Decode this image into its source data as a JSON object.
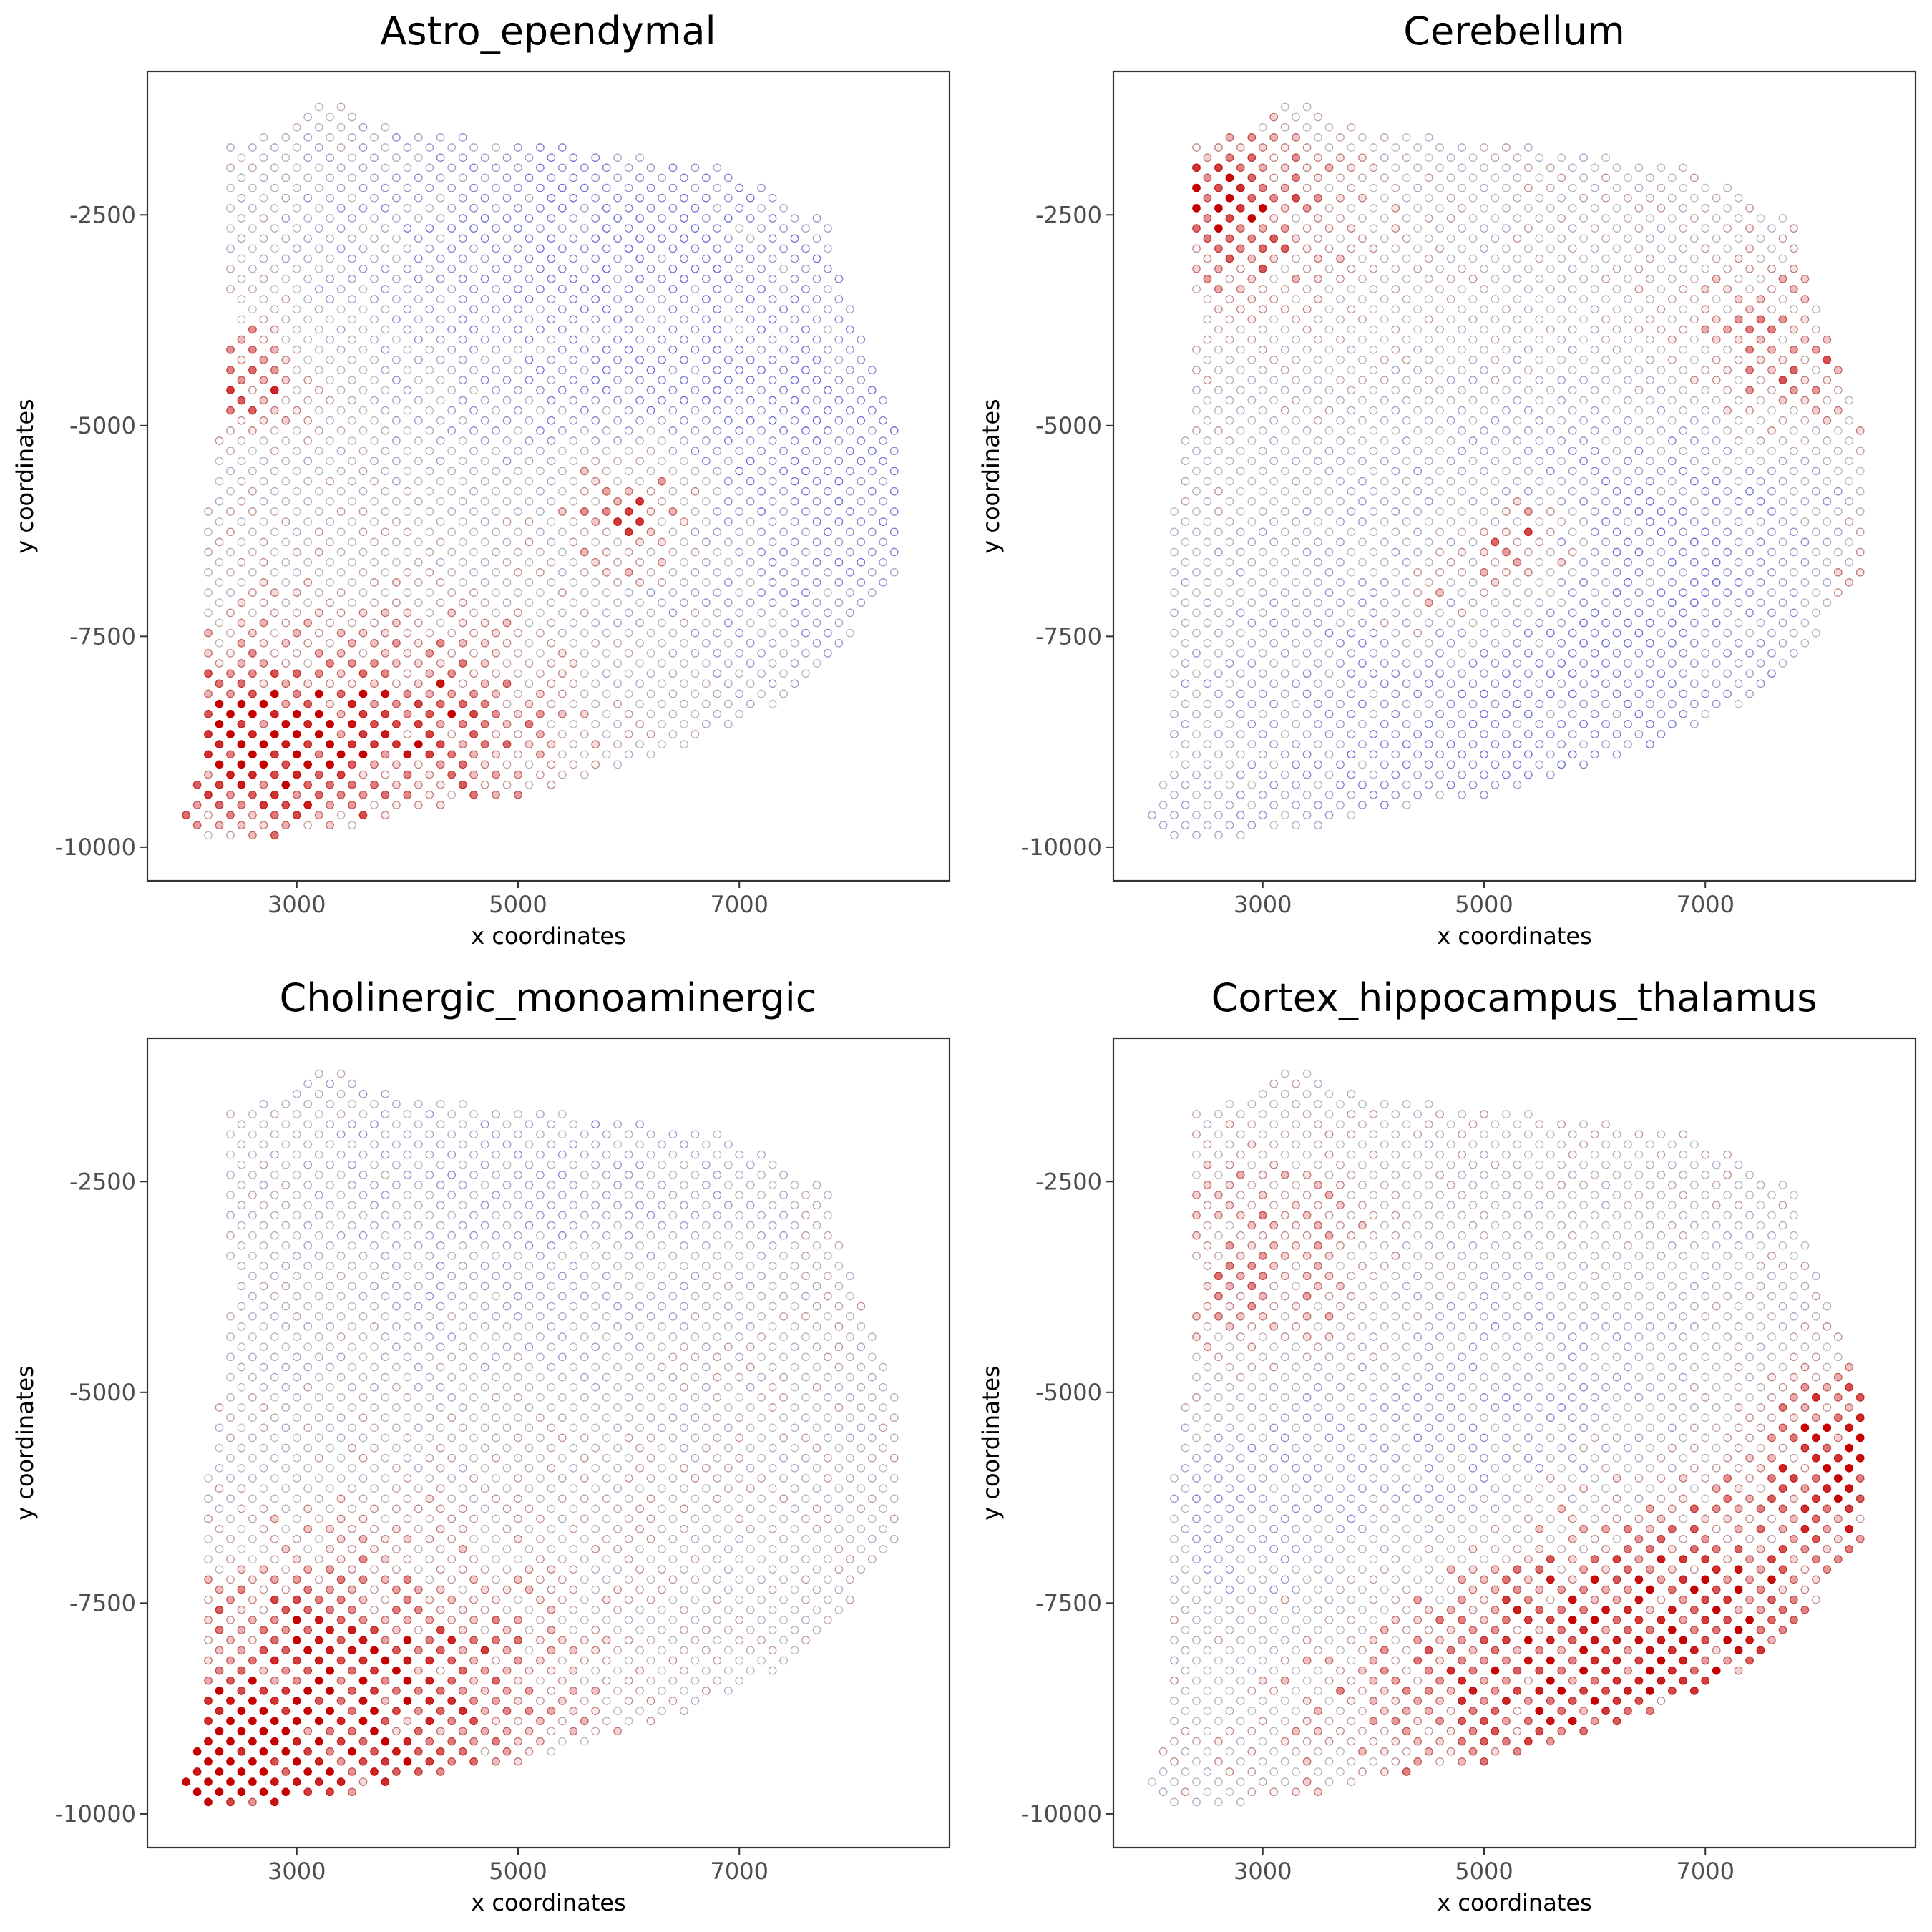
{
  "chart_data": [
    {
      "type": "scatter",
      "title": "Astro_ependymal",
      "xlabel": "x coordinates",
      "ylabel": "y coordinates",
      "xticks": [
        "3000",
        "5000",
        "7000"
      ],
      "yticks": [
        "-2500",
        "-5000",
        "-7500",
        "-10000"
      ],
      "xlim": [
        1650,
        8900
      ],
      "ylim": [
        -10400,
        -800
      ],
      "grid": false,
      "legend": "none",
      "colors": {
        "low": "#6a6ad8",
        "mid": "#bdbdbd",
        "high": "#c40000"
      },
      "hotspots": [
        {
          "x": 2450,
          "y": -4400,
          "r": 450,
          "w": 0.9
        },
        {
          "x": 6100,
          "y": -6000,
          "r": 550,
          "w": 1.0
        },
        {
          "x": 2450,
          "y": -8800,
          "r": 650,
          "w": 0.85
        },
        {
          "x": 3600,
          "y": -8600,
          "r": 1100,
          "w": 0.45
        },
        {
          "x": 4500,
          "y": -8600,
          "r": 700,
          "w": 0.4
        }
      ],
      "coldspots": [
        {
          "x": 5600,
          "y": -2700,
          "r": 1600,
          "w": 0.7
        },
        {
          "x": 7700,
          "y": -5500,
          "r": 1600,
          "w": 0.7
        }
      ]
    },
    {
      "type": "scatter",
      "title": "Cerebellum",
      "xlabel": "x coordinates",
      "ylabel": "y coordinates",
      "xticks": [
        "3000",
        "5000",
        "7000"
      ],
      "yticks": [
        "-2500",
        "-5000",
        "-7500",
        "-10000"
      ],
      "xlim": [
        1650,
        8900
      ],
      "ylim": [
        -10400,
        -800
      ],
      "grid": false,
      "legend": "none",
      "colors": {
        "low": "#6a6ad8",
        "mid": "#bdbdbd",
        "high": "#c40000"
      },
      "hotspots": [
        {
          "x": 2600,
          "y": -2400,
          "r": 700,
          "w": 0.9
        },
        {
          "x": 5350,
          "y": -6400,
          "r": 450,
          "w": 0.85
        },
        {
          "x": 4700,
          "y": -7200,
          "r": 450,
          "w": 0.7
        },
        {
          "x": 7700,
          "y": -4300,
          "r": 800,
          "w": 0.6
        },
        {
          "x": 8500,
          "y": -6800,
          "r": 500,
          "w": 0.5
        }
      ],
      "coldspots": [
        {
          "x": 5000,
          "y": -8600,
          "r": 1700,
          "w": 0.7
        },
        {
          "x": 6800,
          "y": -6200,
          "r": 1300,
          "w": 0.6
        }
      ]
    },
    {
      "type": "scatter",
      "title": "Cholinergic_monoaminergic",
      "xlabel": "x coordinates",
      "ylabel": "y coordinates",
      "xticks": [
        "3000",
        "5000",
        "7000"
      ],
      "yticks": [
        "-2500",
        "-5000",
        "-7500",
        "-10000"
      ],
      "xlim": [
        1650,
        8900
      ],
      "ylim": [
        -10400,
        -800
      ],
      "grid": false,
      "legend": "none",
      "colors": {
        "low": "#6a6ad8",
        "mid": "#bdbdbd",
        "high": "#c40000"
      },
      "hotspots": [
        {
          "x": 3400,
          "y": -8700,
          "r": 1200,
          "w": 1.0
        },
        {
          "x": 2300,
          "y": -9400,
          "r": 500,
          "w": 0.8
        }
      ],
      "coldspots": [
        {
          "x": 5000,
          "y": -2500,
          "r": 1500,
          "w": 0.35
        }
      ]
    },
    {
      "type": "scatter",
      "title": "Cortex_hippocampus_thalamus",
      "xlabel": "x coordinates",
      "ylabel": "y coordinates",
      "xticks": [
        "3000",
        "5000",
        "7000"
      ],
      "yticks": [
        "-2500",
        "-5000",
        "-7500",
        "-10000"
      ],
      "xlim": [
        1650,
        8900
      ],
      "ylim": [
        -10400,
        -800
      ],
      "grid": false,
      "legend": "none",
      "colors": {
        "low": "#6a6ad8",
        "mid": "#bdbdbd",
        "high": "#c40000"
      },
      "hotspots": [
        {
          "x": 8400,
          "y": -5600,
          "r": 600,
          "w": 0.9
        },
        {
          "x": 7200,
          "y": -7500,
          "r": 1300,
          "w": 0.7
        },
        {
          "x": 5200,
          "y": -8400,
          "r": 1300,
          "w": 0.6
        },
        {
          "x": 2900,
          "y": -3500,
          "r": 800,
          "w": 0.5
        }
      ],
      "coldspots": [
        {
          "x": 5500,
          "y": -5500,
          "r": 1300,
          "w": 0.5
        },
        {
          "x": 3000,
          "y": -6500,
          "r": 900,
          "w": 0.4
        }
      ]
    }
  ]
}
